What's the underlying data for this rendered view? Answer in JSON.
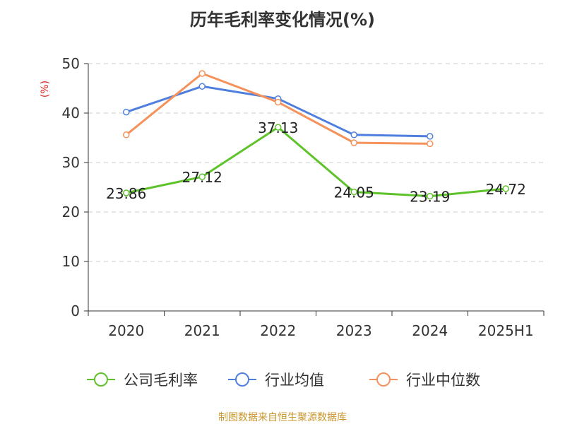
{
  "chart_data": {
    "type": "line",
    "title": "历年毛利率变化情况(%)",
    "ylabel": "(%)",
    "categories": [
      "2020",
      "2021",
      "2022",
      "2023",
      "2024",
      "2025H1"
    ],
    "ylim": [
      0,
      50
    ],
    "yticks": [
      0,
      10,
      20,
      30,
      40,
      50
    ],
    "grid": true,
    "legend_position": "bottom",
    "series": [
      {
        "name": "公司毛利率",
        "color": "#5ec22a",
        "values": [
          23.86,
          27.12,
          37.13,
          24.05,
          23.19,
          24.72
        ],
        "labels": [
          "23.86",
          "27.12",
          "37.13",
          "24.05",
          "23.19",
          "24.72"
        ]
      },
      {
        "name": "行业均值",
        "color": "#4f7fde",
        "values": [
          40.2,
          45.4,
          42.9,
          35.6,
          35.3,
          null
        ]
      },
      {
        "name": "行业中位数",
        "color": "#f5915a",
        "values": [
          35.6,
          48.0,
          42.2,
          34.0,
          33.8,
          null
        ]
      }
    ]
  },
  "source": "制图数据来自恒生聚源数据库"
}
